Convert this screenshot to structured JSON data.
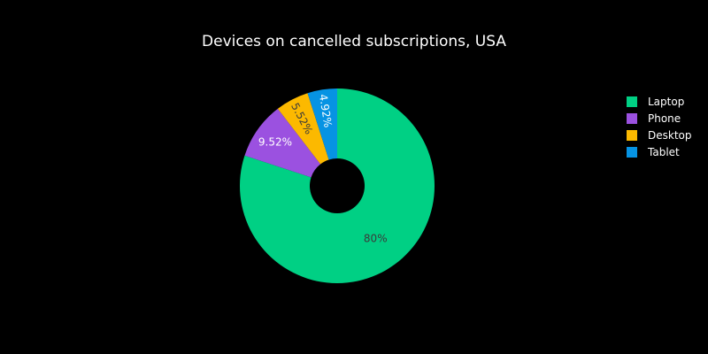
{
  "chart_data": {
    "type": "pie",
    "hole": true,
    "title": "Devices on cancelled subscriptions, USA",
    "labels": [
      "Laptop",
      "Phone",
      "Desktop",
      "Tablet"
    ],
    "values": [
      80,
      9.52,
      5.52,
      4.92
    ],
    "value_labels": [
      "80%",
      "9.52%",
      "5.52%",
      "4.92%"
    ],
    "colors": [
      "#00d084",
      "#9b51e0",
      "#fcb900",
      "#0693e3"
    ],
    "label_colors": [
      "#3a3a3a",
      "#ffffff",
      "#3a3a3a",
      "#ffffff"
    ],
    "direction": "clockwise",
    "legend_position": "right",
    "background": "#000000"
  }
}
